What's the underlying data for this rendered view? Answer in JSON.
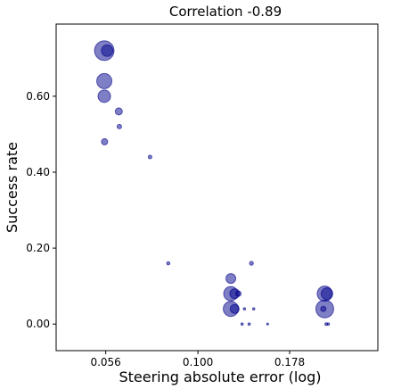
{
  "chart_data": {
    "type": "scatter",
    "title": "Correlation -0.89",
    "xlabel": "Steering absolute error (log)",
    "ylabel": "Success rate",
    "x_scale": "log",
    "xlim": [
      0.041,
      0.31
    ],
    "ylim": [
      -0.07,
      0.79
    ],
    "x_ticks": [
      {
        "value": 0.056,
        "label": "0.056"
      },
      {
        "value": 0.1,
        "label": "0.100"
      },
      {
        "value": 0.178,
        "label": "0.178"
      }
    ],
    "y_ticks": [
      {
        "value": 0.0,
        "label": "0.00"
      },
      {
        "value": 0.2,
        "label": "0.20"
      },
      {
        "value": 0.4,
        "label": "0.40"
      },
      {
        "value": 0.6,
        "label": "0.60"
      }
    ],
    "grid": false,
    "marker_color": "#00008b",
    "points": [
      {
        "x": 0.0555,
        "y": 0.72,
        "size": 11
      },
      {
        "x": 0.0565,
        "y": 0.72,
        "size": 6.5
      },
      {
        "x": 0.0555,
        "y": 0.64,
        "size": 8.5
      },
      {
        "x": 0.0555,
        "y": 0.6,
        "size": 7
      },
      {
        "x": 0.0608,
        "y": 0.56,
        "size": 4
      },
      {
        "x": 0.0556,
        "y": 0.48,
        "size": 3.5
      },
      {
        "x": 0.061,
        "y": 0.52,
        "size": 2.5
      },
      {
        "x": 0.074,
        "y": 0.44,
        "size": 2
      },
      {
        "x": 0.083,
        "y": 0.16,
        "size": 1.8
      },
      {
        "x": 0.123,
        "y": 0.12,
        "size": 5.5
      },
      {
        "x": 0.123,
        "y": 0.08,
        "size": 8
      },
      {
        "x": 0.126,
        "y": 0.08,
        "size": 5.5
      },
      {
        "x": 0.129,
        "y": 0.08,
        "size": 3
      },
      {
        "x": 0.123,
        "y": 0.04,
        "size": 8.5
      },
      {
        "x": 0.126,
        "y": 0.04,
        "size": 5
      },
      {
        "x": 0.14,
        "y": 0.16,
        "size": 2.2
      },
      {
        "x": 0.134,
        "y": 0.04,
        "size": 1.3
      },
      {
        "x": 0.142,
        "y": 0.04,
        "size": 1.3
      },
      {
        "x": 0.132,
        "y": 0.0,
        "size": 1.3
      },
      {
        "x": 0.138,
        "y": 0.0,
        "size": 1.3
      },
      {
        "x": 0.155,
        "y": 0.0,
        "size": 1.1
      },
      {
        "x": 0.222,
        "y": 0.08,
        "size": 8.5
      },
      {
        "x": 0.225,
        "y": 0.08,
        "size": 6.5
      },
      {
        "x": 0.222,
        "y": 0.04,
        "size": 10
      },
      {
        "x": 0.22,
        "y": 0.04,
        "size": 3
      },
      {
        "x": 0.224,
        "y": 0.0,
        "size": 1.5
      },
      {
        "x": 0.227,
        "y": 0.0,
        "size": 1.3
      }
    ]
  }
}
